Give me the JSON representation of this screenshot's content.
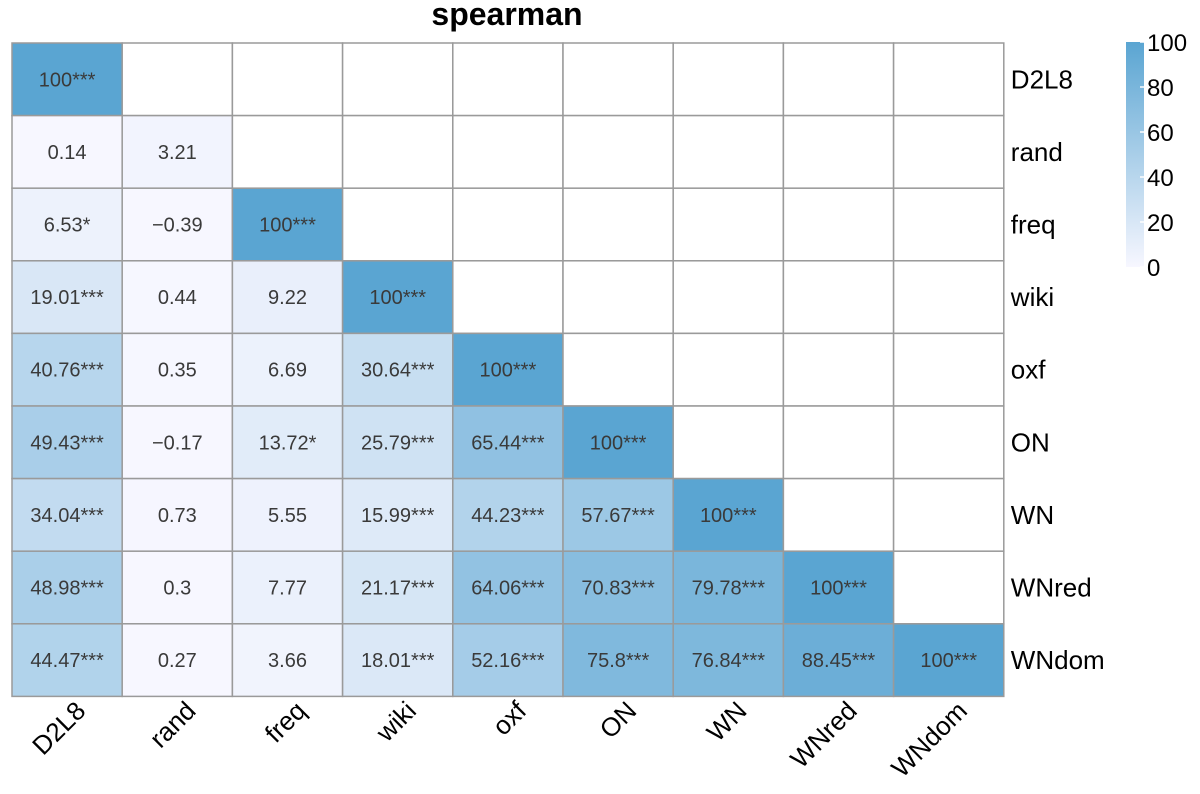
{
  "chart_data": {
    "type": "heatmap",
    "title": "spearman",
    "variables": [
      "D2L8",
      "rand",
      "freq",
      "wiki",
      "oxf",
      "ON",
      "WN",
      "WNred",
      "WNdom"
    ],
    "rows": [
      "D2L8",
      "rand",
      "freq",
      "wiki",
      "oxf",
      "ON",
      "WN",
      "WNred",
      "WNdom"
    ],
    "columns": [
      "D2L8",
      "rand",
      "freq",
      "wiki",
      "oxf",
      "ON",
      "WN",
      "WNred",
      "WNdom"
    ],
    "triangle": "lower",
    "values": [
      [
        100
      ],
      [
        0.14,
        3.21
      ],
      [
        6.53,
        -0.39,
        100
      ],
      [
        19.01,
        0.44,
        9.22,
        100
      ],
      [
        40.76,
        0.35,
        6.69,
        30.64,
        100
      ],
      [
        49.43,
        -0.17,
        13.72,
        25.79,
        65.44,
        100
      ],
      [
        34.04,
        0.73,
        5.55,
        15.99,
        44.23,
        57.67,
        100
      ],
      [
        48.98,
        0.3,
        7.77,
        21.17,
        64.06,
        70.83,
        79.78,
        100
      ],
      [
        44.47,
        0.27,
        3.66,
        18.01,
        52.16,
        75.8,
        76.84,
        88.45,
        100
      ]
    ],
    "labels": [
      [
        "100***"
      ],
      [
        "0.14",
        "3.21"
      ],
      [
        "6.53*",
        "−0.39",
        "100***"
      ],
      [
        "19.01***",
        "0.44",
        "9.22",
        "100***"
      ],
      [
        "40.76***",
        "0.35",
        "6.69",
        "30.64***",
        "100***"
      ],
      [
        "49.43***",
        "−0.17",
        "13.72*",
        "25.79***",
        "65.44***",
        "100***"
      ],
      [
        "34.04***",
        "0.73",
        "5.55",
        "15.99***",
        "44.23***",
        "57.67***",
        "100***"
      ],
      [
        "48.98***",
        "0.3",
        "7.77",
        "21.17***",
        "64.06***",
        "70.83***",
        "79.78***",
        "100***"
      ],
      [
        "44.47***",
        "0.27",
        "3.66",
        "18.01***",
        "52.16***",
        "75.8***",
        "76.84***",
        "88.45***",
        "100***"
      ]
    ],
    "color_scale": {
      "min": 0,
      "max": 100,
      "low_color": "#f7f7ff",
      "high_color": "#5aa5d2"
    },
    "legend": {
      "position": "top-right",
      "ticks": [
        0,
        20,
        40,
        60,
        80,
        100
      ],
      "tick_labels": [
        "0",
        "20",
        "40",
        "60",
        "80",
        "100"
      ]
    },
    "grid": true,
    "colors": {
      "cell_border": "#9a9a9a",
      "text": "#3a3a3a",
      "empty_cell": "#ffffff"
    }
  }
}
